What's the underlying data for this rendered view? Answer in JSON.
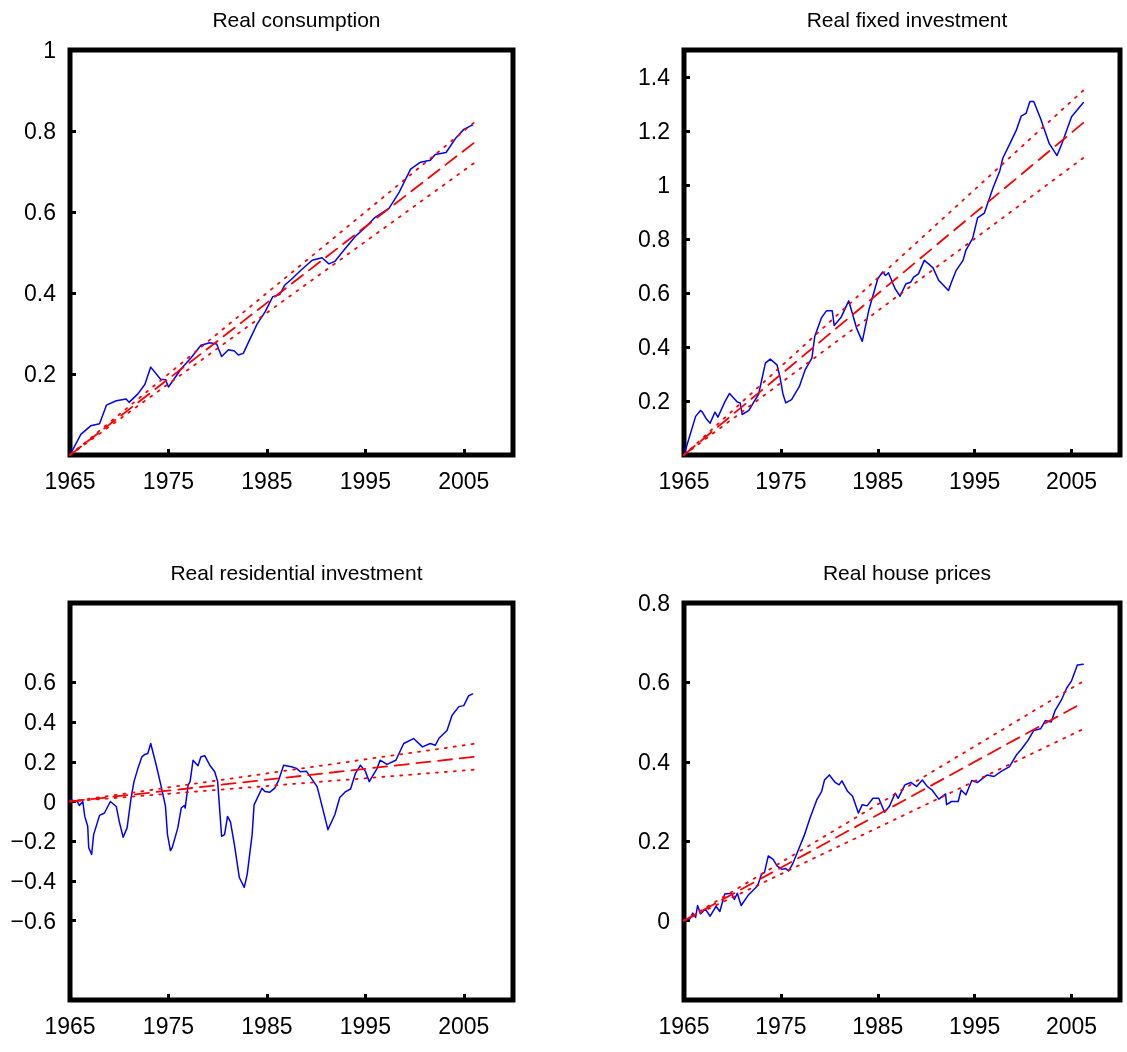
{
  "chart_data": [
    {
      "type": "line",
      "title": "Real consumption",
      "xlim": [
        1965,
        2010
      ],
      "xticks": [
        1965,
        1975,
        1985,
        1995,
        2005
      ],
      "ylim": [
        0,
        1
      ],
      "yticks": [
        0.2,
        0.4,
        0.6,
        0.8,
        1
      ],
      "grid": false,
      "marker": "none",
      "series": [
        {
          "color": "#0000ff",
          "line_style": "solid",
          "x": [
            1965,
            1966.1,
            1967.1,
            1968,
            1968.7,
            1969.7,
            1970.7,
            1971,
            1971.9,
            1972.6,
            1973.2,
            1974.2,
            1974.7,
            1975,
            1976.3,
            1977.3,
            1978.3,
            1979.2,
            1979.9,
            1980.4,
            1981.1,
            1981.7,
            1982.1,
            1982.6,
            1983.1,
            1984,
            1984.8,
            1985.6,
            1986.3,
            1986.8,
            1987.5,
            1988.4,
            1989.6,
            1990.6,
            1991.3,
            1991.9,
            1993,
            1994,
            1995,
            1996,
            1997.4,
            1998.4,
            1999.6,
            2000.6,
            2001.6,
            2002.1,
            2003.2,
            2004.2,
            2005,
            2005.9
          ],
          "values": [
            0,
            0.051,
            0.072,
            0.077,
            0.123,
            0.134,
            0.138,
            0.13,
            0.151,
            0.174,
            0.217,
            0.187,
            0.186,
            0.168,
            0.213,
            0.24,
            0.271,
            0.277,
            0.274,
            0.243,
            0.26,
            0.257,
            0.247,
            0.251,
            0.277,
            0.323,
            0.353,
            0.391,
            0.396,
            0.419,
            0.434,
            0.455,
            0.481,
            0.487,
            0.472,
            0.478,
            0.511,
            0.54,
            0.562,
            0.587,
            0.609,
            0.647,
            0.706,
            0.723,
            0.728,
            0.742,
            0.747,
            0.783,
            0.804,
            0.815
          ]
        },
        {
          "color": "#ff0000",
          "line_style": "dashed",
          "x": [
            1965,
            2006
          ],
          "values": [
            0,
            0.77
          ]
        },
        {
          "color": "#ff0000",
          "line_style": "dotted",
          "x": [
            1965,
            2006
          ],
          "values": [
            0,
            0.82
          ]
        },
        {
          "color": "#ff0000",
          "line_style": "dotted",
          "x": [
            1965,
            2006
          ],
          "values": [
            0,
            0.72
          ]
        }
      ]
    },
    {
      "type": "line",
      "title": "Real fixed investment",
      "xlim": [
        1965,
        2010
      ],
      "xticks": [
        1965,
        1975,
        1985,
        1995,
        2005
      ],
      "ylim": [
        0,
        1.5
      ],
      "yticks": [
        0.2,
        0.4,
        0.6,
        0.8,
        1,
        1.2,
        1.4
      ],
      "grid": false,
      "marker": "none",
      "series": [
        {
          "color": "#0000ff",
          "line_style": "solid",
          "x": [
            1965,
            1966.2,
            1966.7,
            1966.9,
            1967.3,
            1967.7,
            1968.2,
            1968.5,
            1969.2,
            1969.7,
            1970.5,
            1970.8,
            1971,
            1971.7,
            1972.2,
            1972.7,
            1973.4,
            1973.9,
            1974.6,
            1974.9,
            1975.2,
            1975.5,
            1976.1,
            1976.9,
            1977.5,
            1978.2,
            1978.5,
            1979.2,
            1979.7,
            1980.3,
            1980.5,
            1981.2,
            1982,
            1982.8,
            1983.4,
            1984.1,
            1985,
            1985.5,
            1985.8,
            1986.1,
            1986.8,
            1987.3,
            1987.9,
            1988.4,
            1988.7,
            1989.2,
            1989.8,
            1990.4,
            1990.7,
            1991.3,
            1992.3,
            1992.6,
            1993.1,
            1993.8,
            1994.1,
            1994.8,
            1995.3,
            1996,
            1996.9,
            1997.6,
            1997.9,
            1998.8,
            1999.3,
            1999.8,
            2000.3,
            2000.7,
            2001.1,
            2001.8,
            2002.7,
            2003.5,
            2004,
            2005,
            2006.2
          ],
          "values": [
            0,
            0.143,
            0.165,
            0.159,
            0.134,
            0.118,
            0.159,
            0.14,
            0.196,
            0.228,
            0.196,
            0.193,
            0.15,
            0.165,
            0.196,
            0.225,
            0.34,
            0.355,
            0.334,
            0.29,
            0.228,
            0.193,
            0.205,
            0.253,
            0.315,
            0.359,
            0.44,
            0.509,
            0.534,
            0.534,
            0.48,
            0.509,
            0.571,
            0.471,
            0.421,
            0.54,
            0.653,
            0.678,
            0.665,
            0.675,
            0.615,
            0.588,
            0.634,
            0.64,
            0.659,
            0.671,
            0.721,
            0.703,
            0.693,
            0.646,
            0.609,
            0.64,
            0.684,
            0.721,
            0.759,
            0.803,
            0.878,
            0.896,
            0.99,
            1.053,
            1.099,
            1.165,
            1.203,
            1.255,
            1.265,
            1.309,
            1.309,
            1.246,
            1.153,
            1.109,
            1.153,
            1.253,
            1.305
          ]
        },
        {
          "color": "#ff0000",
          "line_style": "dashed",
          "x": [
            1965,
            2006.2
          ],
          "values": [
            0,
            1.23
          ]
        },
        {
          "color": "#ff0000",
          "line_style": "dotted",
          "x": [
            1965,
            2006.2
          ],
          "values": [
            0,
            1.35
          ]
        },
        {
          "color": "#ff0000",
          "line_style": "dotted",
          "x": [
            1965,
            2006.2
          ],
          "values": [
            0,
            1.1
          ]
        }
      ]
    },
    {
      "type": "line",
      "title": "Real residential investment",
      "xlim": [
        1965,
        2010
      ],
      "xticks": [
        1965,
        1975,
        1985,
        1995,
        2005
      ],
      "ylim": [
        -1,
        1
      ],
      "yticks": [
        {
          "value": -0.6,
          "label": "−0.6"
        },
        {
          "value": -0.4,
          "label": "−0.4"
        },
        {
          "value": -0.2,
          "label": "−0.2"
        },
        0,
        0.2,
        0.4,
        0.6
      ],
      "grid": false,
      "marker": "none",
      "series": [
        {
          "color": "#0000ff",
          "line_style": "solid",
          "x": [
            1965,
            1965.7,
            1965.95,
            1966.3,
            1966.5,
            1966.8,
            1966.9,
            1967.2,
            1967.4,
            1968,
            1968.5,
            1969.1,
            1969.7,
            1970,
            1970.4,
            1970.8,
            1971.2,
            1971.5,
            1971.9,
            1972.3,
            1972.6,
            1972.9,
            1973.2,
            1973.8,
            1974.3,
            1974.7,
            1974.9,
            1975.2,
            1975.4,
            1975.95,
            1976.3,
            1976.6,
            1976.7,
            1977,
            1977.2,
            1977.5,
            1978,
            1978.3,
            1978.7,
            1979.2,
            1979.7,
            1980,
            1980.4,
            1980.7,
            1981,
            1981.3,
            1981.7,
            1982.2,
            1982.7,
            1983,
            1983.5,
            1983.7,
            1984.5,
            1984.8,
            1985.3,
            1985.8,
            1986.2,
            1986.7,
            1987.5,
            1988,
            1988.4,
            1989,
            1989.4,
            1990.1,
            1990.4,
            1991.2,
            1991.9,
            1992.4,
            1993,
            1993.5,
            1994,
            1994.5,
            1995,
            1995.4,
            1996.2,
            1996.5,
            1997.2,
            1998.1,
            1998.9,
            1999.9,
            2000.8,
            2001.6,
            2002.1,
            2002.5,
            2003.3,
            2003.8,
            2004.5,
            2005,
            2005.5,
            2005.9
          ],
          "values": [
            0.008,
            0.003,
            -0.02,
            0,
            -0.075,
            -0.125,
            -0.233,
            -0.267,
            -0.167,
            -0.07,
            -0.058,
            0,
            -0.025,
            -0.1,
            -0.18,
            -0.133,
            0.017,
            0.1,
            0.167,
            0.225,
            0.237,
            0.242,
            0.292,
            0.175,
            0.067,
            -0.025,
            -0.167,
            -0.247,
            -0.23,
            -0.133,
            -0.033,
            -0.02,
            -0.033,
            0.083,
            0.1,
            0.208,
            0.18,
            0.225,
            0.23,
            0.183,
            0.15,
            0.1,
            -0.175,
            -0.167,
            -0.075,
            -0.103,
            -0.217,
            -0.383,
            -0.433,
            -0.367,
            -0.167,
            -0.017,
            0.067,
            0.05,
            0.047,
            0.067,
            0.108,
            0.183,
            0.175,
            0.167,
            0.15,
            0.153,
            0.125,
            0.075,
            0.017,
            -0.142,
            -0.067,
            0.02,
            0.05,
            0.063,
            0.142,
            0.183,
            0.153,
            0.1,
            0.167,
            0.208,
            0.187,
            0.208,
            0.292,
            0.317,
            0.275,
            0.292,
            0.283,
            0.32,
            0.358,
            0.433,
            0.478,
            0.483,
            0.533,
            0.542
          ]
        },
        {
          "color": "#ff0000",
          "line_style": "dashed",
          "x": [
            1965,
            2006
          ],
          "values": [
            0,
            0.225
          ]
        },
        {
          "color": "#ff0000",
          "line_style": "dotted",
          "x": [
            1965,
            2006
          ],
          "values": [
            0,
            0.29
          ]
        },
        {
          "color": "#ff0000",
          "line_style": "dotted",
          "x": [
            1965,
            2006
          ],
          "values": [
            0,
            0.16
          ]
        }
      ]
    },
    {
      "type": "line",
      "title": "Real house prices",
      "xlim": [
        1965,
        2010
      ],
      "xticks": [
        1965,
        1975,
        1985,
        1995,
        2005
      ],
      "ylim": [
        -0.2,
        0.8
      ],
      "yticks": [
        0,
        0.2,
        0.4,
        0.6,
        0.8
      ],
      "grid": false,
      "marker": "none",
      "series": [
        {
          "color": "#0000ff",
          "line_style": "solid",
          "x": [
            1965,
            1965.6,
            1965.9,
            1966.2,
            1966.4,
            1966.7,
            1967.2,
            1967.7,
            1968.3,
            1968.7,
            1969.2,
            1969.9,
            1970.2,
            1970.5,
            1970.9,
            1971.6,
            1972.6,
            1973,
            1973.3,
            1973.7,
            1974.2,
            1974.6,
            1975.1,
            1975.5,
            1975.8,
            1976.2,
            1976.8,
            1977.4,
            1978,
            1978.7,
            1979.2,
            1979.5,
            1980,
            1980.4,
            1980.6,
            1981,
            1981.3,
            1981.9,
            1982.4,
            1983,
            1983.4,
            1983.9,
            1984.5,
            1985.1,
            1985.7,
            1986.2,
            1986.8,
            1987.1,
            1987.8,
            1988.4,
            1989,
            1989.6,
            1990.1,
            1990.6,
            1991.3,
            1992,
            1992.1,
            1992.6,
            1993.3,
            1993.6,
            1994.1,
            1994.7,
            1995.3,
            1996.3,
            1997,
            1997.7,
            1998.6,
            1999.3,
            1999.8,
            2000.5,
            2001.1,
            2001.8,
            2002.3,
            2002.9,
            2003.3,
            2004,
            2004.5,
            2005,
            2005.6,
            2006.2
          ],
          "values": [
            0,
            0.004,
            0.019,
            0.008,
            0.038,
            0.017,
            0.029,
            0.011,
            0.036,
            0.023,
            0.067,
            0.069,
            0.053,
            0.069,
            0.038,
            0.063,
            0.088,
            0.117,
            0.121,
            0.163,
            0.154,
            0.138,
            0.129,
            0.131,
            0.125,
            0.142,
            0.178,
            0.214,
            0.258,
            0.304,
            0.325,
            0.354,
            0.367,
            0.354,
            0.348,
            0.342,
            0.352,
            0.325,
            0.313,
            0.271,
            0.292,
            0.289,
            0.308,
            0.308,
            0.273,
            0.288,
            0.321,
            0.308,
            0.342,
            0.348,
            0.338,
            0.354,
            0.338,
            0.329,
            0.306,
            0.319,
            0.292,
            0.3,
            0.3,
            0.329,
            0.317,
            0.353,
            0.348,
            0.367,
            0.363,
            0.375,
            0.388,
            0.417,
            0.431,
            0.454,
            0.479,
            0.483,
            0.504,
            0.5,
            0.529,
            0.558,
            0.586,
            0.604,
            0.644,
            0.646
          ]
        },
        {
          "color": "#ff0000",
          "line_style": "dashed",
          "x": [
            1965,
            2005.5
          ],
          "values": [
            0,
            0.54
          ]
        },
        {
          "color": "#ff0000",
          "line_style": "dotted",
          "x": [
            1965,
            2006
          ],
          "values": [
            0,
            0.6
          ]
        },
        {
          "color": "#ff0000",
          "line_style": "dotted",
          "x": [
            1965,
            2006
          ],
          "values": [
            0,
            0.48
          ]
        }
      ]
    }
  ]
}
